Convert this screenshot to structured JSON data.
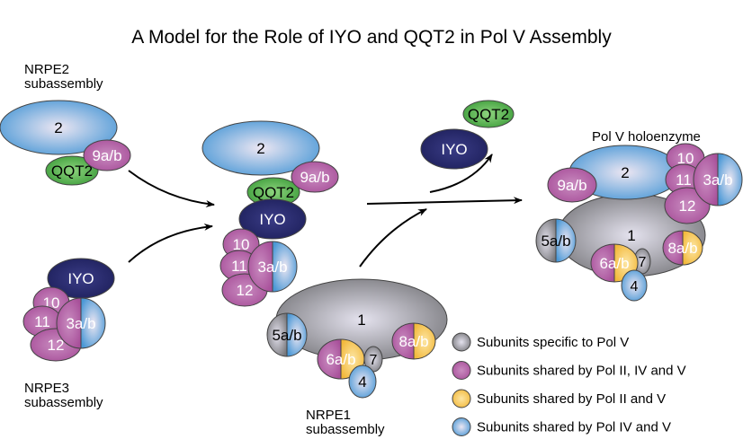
{
  "title": "A Model for the Role of IYO and QQT2 in Pol V Assembly",
  "group_labels": {
    "nrpe2": [
      "NRPE2",
      "subassembly"
    ],
    "nrpe3": [
      "NRPE3",
      "subassembly"
    ],
    "nrpe1": [
      "NRPE1",
      "subassembly"
    ],
    "holoenzyme": "Pol V holoenzyme"
  },
  "subunits": {
    "s1": "1",
    "s2": "2",
    "s3": "3a/b",
    "s4": "4",
    "s5": "5a/b",
    "s6": "6a/b",
    "s7": "7",
    "s8": "8a/b",
    "s9": "9a/b",
    "s10": "10",
    "s11": "11",
    "s12": "12",
    "iyo": "IYO",
    "qqt2": "QQT2"
  },
  "legend": [
    {
      "label": "Subunits specific to Pol V",
      "color": "#8a8a8e"
    },
    {
      "label": "Subunits shared by Pol II, IV and V",
      "color": "#b0589f"
    },
    {
      "label": "Subunits shared by Pol II and V",
      "color": "#f2b83a"
    },
    {
      "label": "Subunits shared by Pol IV and V",
      "color": "#4a98d6"
    }
  ],
  "colors": {
    "blue": "#4a98d6",
    "purple": "#b0589f",
    "gray": "#8a8a8e",
    "yellow": "#f2b83a",
    "green": "#4caf48",
    "navy": "#26286a"
  }
}
